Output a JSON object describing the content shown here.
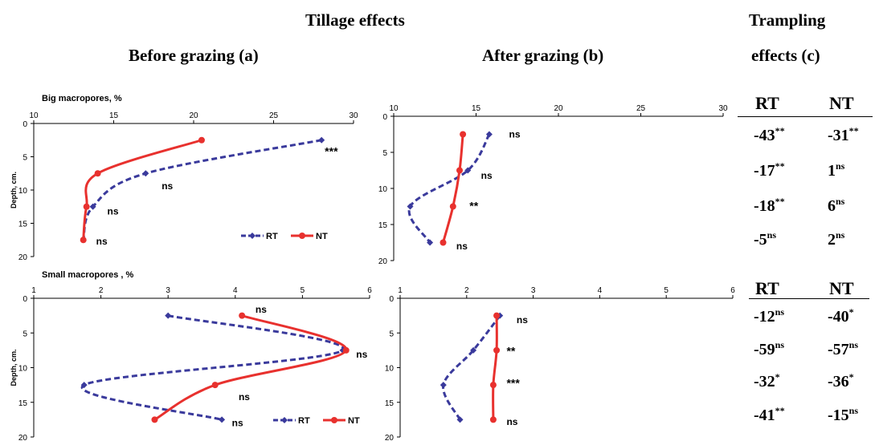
{
  "headers": {
    "tillage": "Tillage effects",
    "before": "Before grazing (a)",
    "after": "After grazing (b)",
    "trampling_l1": "Trampling",
    "trampling_l2": "effects (c)"
  },
  "colors": {
    "RT": "#3a3a9c",
    "NT": "#e8312e"
  },
  "chart_data": [
    {
      "id": "big-before",
      "type": "line",
      "title": "Big macropores,  %",
      "ylabel": "Depth, cm.",
      "xlim": [
        10,
        30
      ],
      "xticks": [
        10,
        15,
        20,
        25,
        30
      ],
      "ylim": [
        0,
        20
      ],
      "yticks": [
        0,
        5,
        10,
        15,
        20
      ],
      "legend": "bottom-right",
      "series": [
        {
          "name": "RT",
          "x": [
            28.0,
            17.0,
            13.7,
            13.1
          ],
          "y": [
            2.5,
            7.5,
            12.5,
            17.5
          ]
        },
        {
          "name": "NT",
          "x": [
            20.5,
            14.0,
            13.3,
            13.1
          ],
          "y": [
            2.5,
            7.5,
            12.5,
            17.5
          ]
        }
      ],
      "annotations": [
        {
          "text": "***",
          "x": 28.2,
          "y": 4.3
        },
        {
          "text": "ns",
          "x": 18.0,
          "y": 9.4
        },
        {
          "text": "ns",
          "x": 14.6,
          "y": 13.2
        },
        {
          "text": "ns",
          "x": 13.9,
          "y": 17.7
        }
      ]
    },
    {
      "id": "big-after",
      "type": "line",
      "title": "",
      "ylabel": "",
      "xlim": [
        10,
        30
      ],
      "xticks": [
        10,
        15,
        20,
        25,
        30
      ],
      "ylim": [
        0,
        20
      ],
      "yticks": [
        0,
        5,
        10,
        15,
        20
      ],
      "series": [
        {
          "name": "RT",
          "x": [
            15.8,
            14.5,
            11.0,
            12.2
          ],
          "y": [
            2.5,
            7.5,
            12.5,
            17.5
          ]
        },
        {
          "name": "NT",
          "x": [
            14.2,
            14.0,
            13.6,
            13.0
          ],
          "y": [
            2.5,
            7.5,
            12.5,
            17.5
          ]
        }
      ],
      "annotations": [
        {
          "text": "ns",
          "x": 17.0,
          "y": 2.5
        },
        {
          "text": "ns",
          "x": 15.3,
          "y": 8.2
        },
        {
          "text": "**",
          "x": 14.6,
          "y": 12.5
        },
        {
          "text": "ns",
          "x": 13.8,
          "y": 18.0
        }
      ]
    },
    {
      "id": "small-before",
      "type": "line",
      "title": "Small  macropores , %",
      "ylabel": "Depth, cm.",
      "xlim": [
        1,
        6
      ],
      "xticks": [
        1,
        2,
        3,
        4,
        5,
        6
      ],
      "ylim": [
        0,
        20
      ],
      "yticks": [
        0,
        5,
        10,
        15,
        20
      ],
      "legend": "bottom-right",
      "series": [
        {
          "name": "RT",
          "x": [
            3.0,
            5.6,
            1.75,
            3.8
          ],
          "y": [
            2.5,
            7.5,
            12.5,
            17.5
          ]
        },
        {
          "name": "NT",
          "x": [
            4.1,
            5.65,
            3.7,
            2.8
          ],
          "y": [
            2.5,
            7.5,
            12.5,
            17.5
          ]
        }
      ],
      "annotations": [
        {
          "text": "ns",
          "x": 4.3,
          "y": 1.6
        },
        {
          "text": "ns",
          "x": 5.8,
          "y": 8.1
        },
        {
          "text": "ns",
          "x": 4.05,
          "y": 14.2
        },
        {
          "text": "ns",
          "x": 3.95,
          "y": 18.0
        }
      ]
    },
    {
      "id": "small-after",
      "type": "line",
      "title": "",
      "ylabel": "",
      "xlim": [
        1,
        6
      ],
      "xticks": [
        1,
        2,
        3,
        4,
        5,
        6
      ],
      "ylim": [
        0,
        20
      ],
      "yticks": [
        0,
        5,
        10,
        15,
        20
      ],
      "series": [
        {
          "name": "RT",
          "x": [
            2.5,
            2.1,
            1.65,
            1.9
          ],
          "y": [
            2.5,
            7.5,
            12.5,
            17.5
          ]
        },
        {
          "name": "NT",
          "x": [
            2.45,
            2.45,
            2.4,
            2.4
          ],
          "y": [
            2.5,
            7.5,
            12.5,
            17.5
          ]
        }
      ],
      "annotations": [
        {
          "text": "ns",
          "x": 2.75,
          "y": 3.1
        },
        {
          "text": "**",
          "x": 2.6,
          "y": 7.7
        },
        {
          "text": "***",
          "x": 2.6,
          "y": 12.3
        },
        {
          "text": "ns",
          "x": 2.6,
          "y": 17.8
        }
      ]
    }
  ],
  "trampling": [
    {
      "headers": [
        "RT",
        "NT"
      ],
      "rows": [
        [
          {
            "v": "-43",
            "s": "**"
          },
          {
            "v": "-31",
            "s": "**"
          }
        ],
        [
          {
            "v": "-17",
            "s": "**"
          },
          {
            "v": "1",
            "s": "ns"
          }
        ],
        [
          {
            "v": "-18",
            "s": "**"
          },
          {
            "v": "6",
            "s": "ns"
          }
        ],
        [
          {
            "v": "-5",
            "s": "ns"
          },
          {
            "v": "2",
            "s": "ns"
          }
        ]
      ]
    },
    {
      "headers": [
        "RT",
        "NT"
      ],
      "rows": [
        [
          {
            "v": "-12",
            "s": "ns"
          },
          {
            "v": "-40",
            "s": "*"
          }
        ],
        [
          {
            "v": "-59",
            "s": "ns"
          },
          {
            "v": "-57",
            "s": "ns"
          }
        ],
        [
          {
            "v": "-32",
            "s": "*"
          },
          {
            "v": "-36",
            "s": "*"
          }
        ],
        [
          {
            "v": "-41",
            "s": "**"
          },
          {
            "v": "-15",
            "s": "ns"
          }
        ]
      ]
    }
  ]
}
